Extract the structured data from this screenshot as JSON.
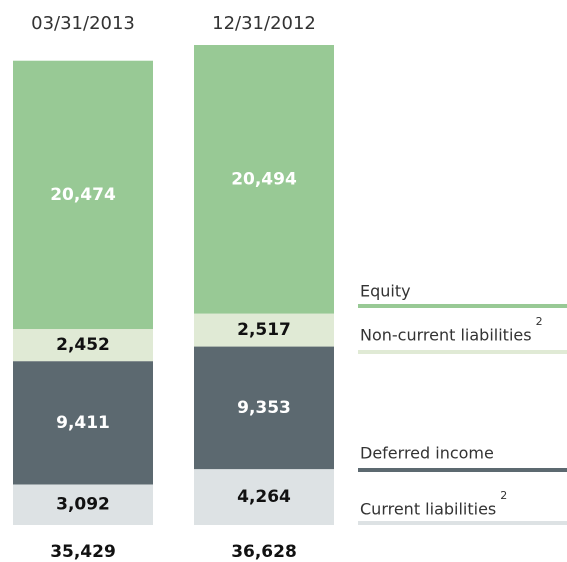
{
  "chart_data": {
    "type": "stacked_bar",
    "categories": [
      "03/31/2013",
      "12/31/2012"
    ],
    "series": [
      {
        "name": "Current liabilities",
        "note": "2",
        "color": "#dde2e4",
        "values": [
          3092,
          4264
        ],
        "value_labels": [
          "3,092",
          "4,264"
        ]
      },
      {
        "name": "Deferred income",
        "color": "#5c6970",
        "values": [
          9411,
          9353
        ],
        "value_labels": [
          "9,411",
          "9,353"
        ]
      },
      {
        "name": "Non-current liabilities",
        "note": "2",
        "color": "#e0ead5",
        "values": [
          2452,
          2517
        ],
        "value_labels": [
          "2,452",
          "2,517"
        ]
      },
      {
        "name": "Equity",
        "color": "#98c995",
        "values": [
          20474,
          20494
        ],
        "value_labels": [
          "20,474",
          "20,494"
        ]
      }
    ],
    "totals": [
      "35,429",
      "36,628"
    ]
  }
}
